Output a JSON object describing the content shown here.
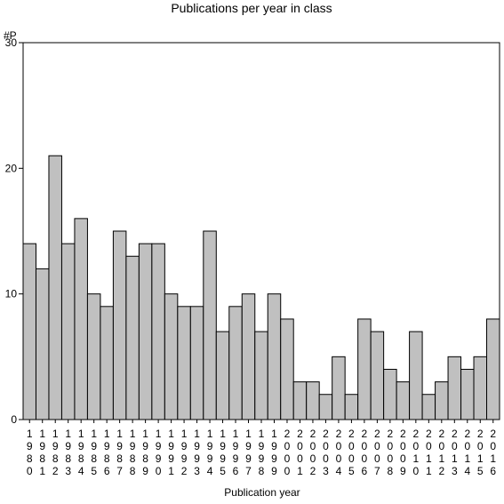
{
  "chart_data": {
    "type": "bar",
    "title": "Publications per year in class",
    "xlabel": "Publication year",
    "ylabel": "#P",
    "ylim": [
      0,
      30
    ],
    "yticks": [
      "0",
      "10",
      "20",
      "30"
    ],
    "categories": [
      "1980",
      "1981",
      "1982",
      "1983",
      "1984",
      "1985",
      "1986",
      "1987",
      "1988",
      "1989",
      "1990",
      "1991",
      "1992",
      "1993",
      "1994",
      "1995",
      "1996",
      "1997",
      "1998",
      "1999",
      "2000",
      "2001",
      "2002",
      "2003",
      "2004",
      "2005",
      "2006",
      "2007",
      "2008",
      "2009",
      "2010",
      "2011",
      "2012",
      "2013",
      "2014",
      "2015",
      "2016"
    ],
    "values": [
      14,
      12,
      21,
      14,
      16,
      10,
      9,
      15,
      13,
      14,
      14,
      10,
      9,
      9,
      15,
      7,
      9,
      10,
      7,
      10,
      8,
      3,
      3,
      2,
      5,
      2,
      8,
      7,
      4,
      3,
      7,
      2,
      3,
      5,
      4,
      5,
      8
    ],
    "bar_color": "#c0c0c0",
    "grid": false
  }
}
